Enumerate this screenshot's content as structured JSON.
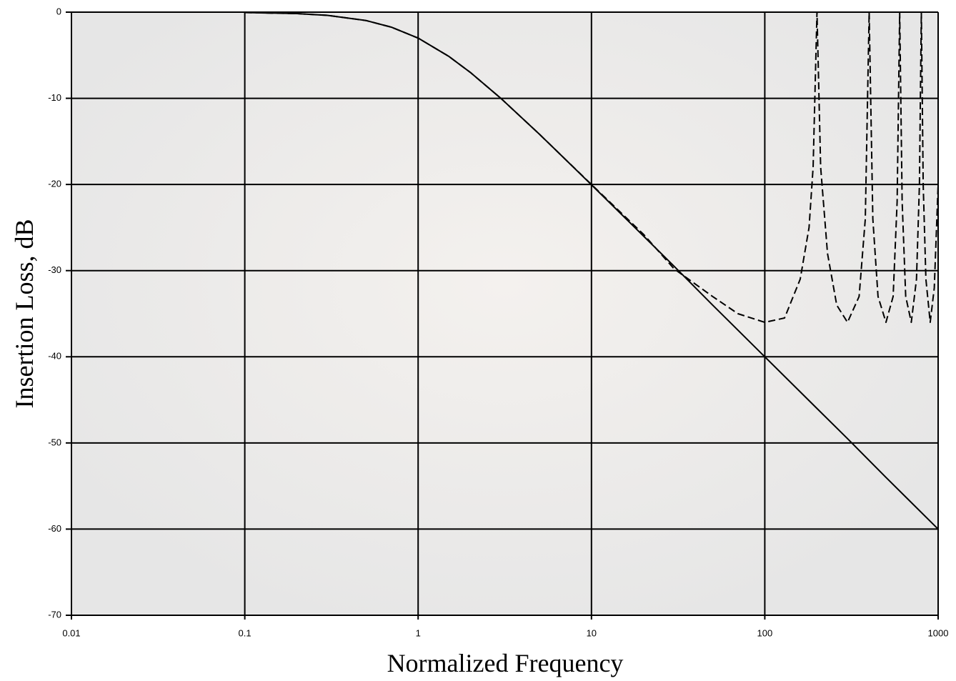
{
  "chart_data": {
    "type": "line",
    "x_label": "Normalized Frequency",
    "y_label": "Insertion Loss, dB",
    "xlog": true,
    "grid": true,
    "xlim": [
      0.01,
      1000
    ],
    "ylim": [
      -70,
      0
    ],
    "xticks": [
      0.01,
      0.1,
      1,
      10,
      100,
      1000
    ],
    "yticks": [
      0,
      -10,
      -20,
      -30,
      -40,
      -50,
      -60,
      -70
    ],
    "series": [
      {
        "color": "#000000",
        "dash": false,
        "x": [
          0.1,
          0.2,
          0.3,
          0.5,
          0.7,
          1,
          1.5,
          2,
          3,
          5,
          7,
          10,
          20,
          30,
          50,
          100,
          200,
          300,
          500,
          1000
        ],
        "values": [
          -0.04,
          -0.17,
          -0.37,
          -0.97,
          -1.74,
          -3.01,
          -5.12,
          -6.99,
          -10,
          -14.15,
          -17,
          -20.04,
          -26,
          -29.5,
          -34,
          -40,
          -46,
          -49.5,
          -54,
          -60
        ]
      },
      {
        "color": "#000000",
        "dash": true,
        "x": [
          0.1,
          0.2,
          0.3,
          0.5,
          0.7,
          1,
          1.5,
          2,
          3,
          5,
          7,
          10,
          20,
          30,
          50,
          70,
          100,
          130,
          160,
          180,
          190,
          200,
          210,
          230,
          260,
          300,
          350,
          380,
          400,
          420,
          450,
          500,
          550,
          580,
          600,
          620,
          650,
          700,
          750,
          780,
          800,
          820,
          850,
          900,
          950,
          1000
        ],
        "values": [
          -0.04,
          -0.17,
          -0.37,
          -0.97,
          -1.74,
          -3.01,
          -5.12,
          -6.99,
          -10,
          -14.15,
          -17,
          -20,
          -25.8,
          -29.8,
          -33,
          -35,
          -36,
          -35.5,
          -31,
          -25,
          -18,
          0,
          -18,
          -28,
          -34,
          -36,
          -33,
          -24,
          0,
          -24,
          -33,
          -36,
          -33,
          -22,
          0,
          -22,
          -33,
          -36,
          -31,
          -20,
          0,
          -20,
          -31,
          -36,
          -32,
          -20
        ]
      }
    ]
  }
}
